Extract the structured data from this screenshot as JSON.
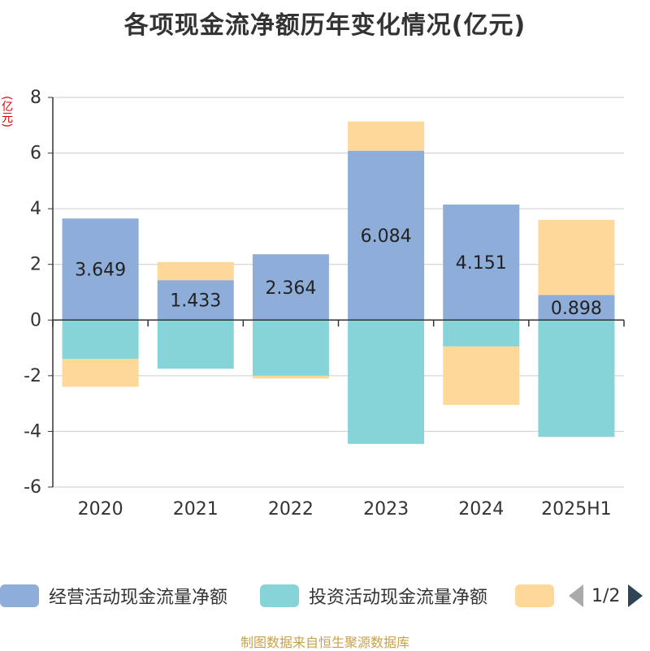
{
  "title": "各项现金流净额历年变化情况(亿元)",
  "unit_label": "(亿元)",
  "source": "制图数据来自恒生聚源数据库",
  "pager": {
    "text": "1/2"
  },
  "legend": [
    {
      "name": "经营活动现金流量净额",
      "color": "#8eaed9"
    },
    {
      "name": "投资活动现金流量净额",
      "color": "#86d4d8"
    },
    {
      "name": "",
      "color": "#fdd899"
    }
  ],
  "chart_data": {
    "type": "bar",
    "stacked": true,
    "categories": [
      "2020",
      "2021",
      "2022",
      "2023",
      "2024",
      "2025H1"
    ],
    "series": [
      {
        "name": "经营活动现金流量净额",
        "color": "#8eaed9",
        "values": [
          3.649,
          1.433,
          2.364,
          6.084,
          4.151,
          0.898
        ],
        "labels": [
          "3.649",
          "1.433",
          "2.364",
          "6.084",
          "4.151",
          "0.898"
        ]
      },
      {
        "name": "投资活动现金流量净额",
        "color": "#86d4d8",
        "values": [
          -1.4,
          -1.75,
          -2.0,
          -4.45,
          -0.95,
          -4.2
        ]
      },
      {
        "name": "",
        "color": "#fdd899",
        "values": [
          -1.0,
          0.65,
          -0.1,
          1.05,
          -2.1,
          2.7
        ]
      }
    ],
    "yticks": [
      "8",
      "6",
      "4",
      "2",
      "0",
      "-2",
      "-4",
      "-6"
    ],
    "ylim": [
      -6,
      8
    ],
    "grid": true,
    "legend_position": "bottom"
  }
}
